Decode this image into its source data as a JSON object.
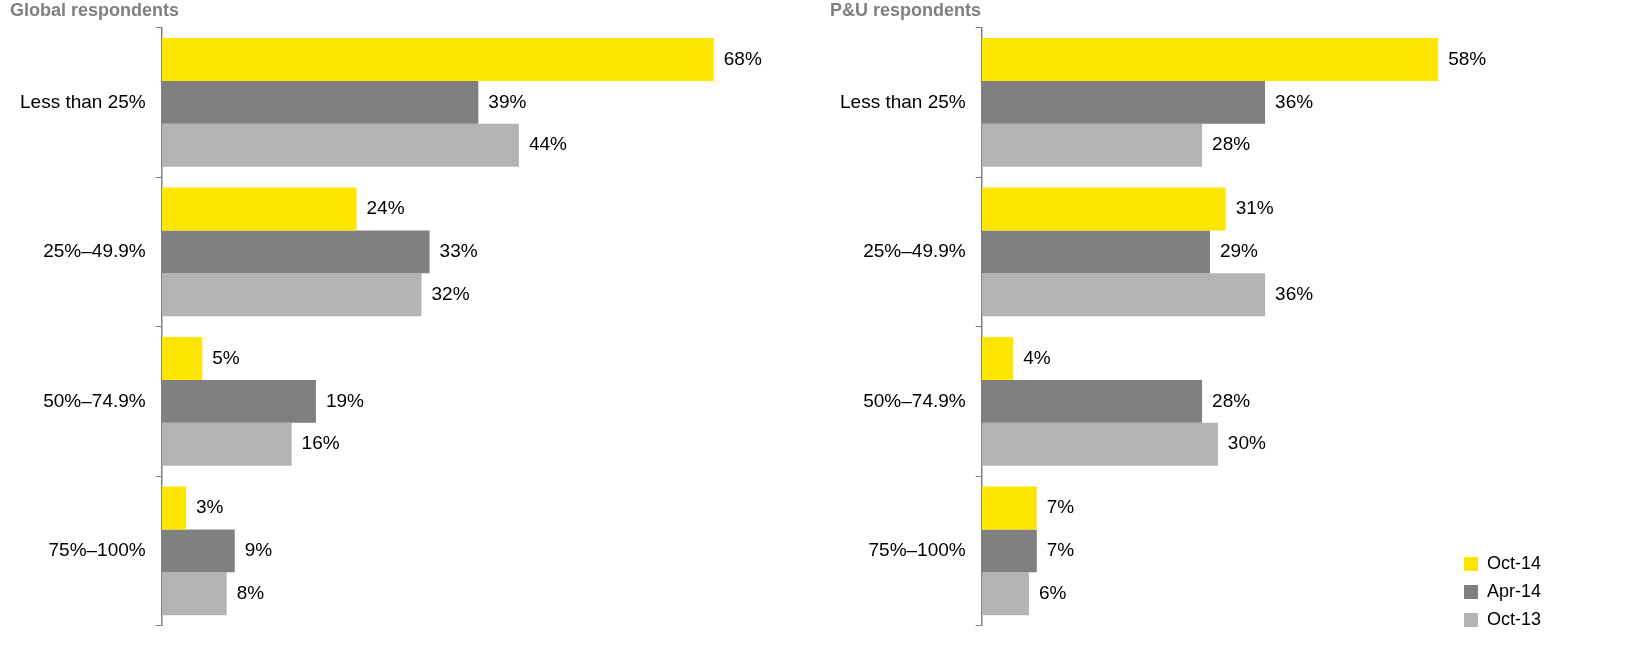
{
  "chart_data": [
    {
      "type": "bar",
      "orientation": "horizontal",
      "title": "Global respondents",
      "categories": [
        "Less than 25%",
        "25%–49.9%",
        "50%–74.9%",
        "75%–100%"
      ],
      "legend": false,
      "series": [
        {
          "color": "#ffe600",
          "values": [
            68,
            24,
            5,
            3
          ],
          "value_labels": [
            "68%",
            "24%",
            "5%",
            "3%"
          ]
        },
        {
          "color": "#808080",
          "values": [
            39,
            33,
            19,
            9
          ],
          "value_labels": [
            "39%",
            "33%",
            "19%",
            "9%"
          ]
        },
        {
          "color": "#b3b3b3",
          "values": [
            44,
            32,
            16,
            8
          ],
          "value_labels": [
            "44%",
            "32%",
            "16%",
            "8%"
          ]
        }
      ]
    },
    {
      "type": "bar",
      "orientation": "horizontal",
      "title": "P&U respondents",
      "categories": [
        "Less than 25%",
        "25%–49.9%",
        "50%–74.9%",
        "75%–100%"
      ],
      "legend": "bottom right",
      "series": [
        {
          "name": "Oct-14",
          "color": "#ffe600",
          "values": [
            58,
            31,
            4,
            7
          ],
          "value_labels": [
            "58%",
            "31%",
            "4%",
            "7%"
          ]
        },
        {
          "name": "Apr-14",
          "color": "#808080",
          "values": [
            36,
            29,
            28,
            7
          ],
          "value_labels": [
            "36%",
            "29%",
            "28%",
            "7%"
          ]
        },
        {
          "name": "Oct-13",
          "color": "#b3b3b3",
          "values": [
            28,
            36,
            30,
            6
          ],
          "value_labels": [
            "28%",
            "36%",
            "30%",
            "6%"
          ]
        }
      ]
    }
  ]
}
